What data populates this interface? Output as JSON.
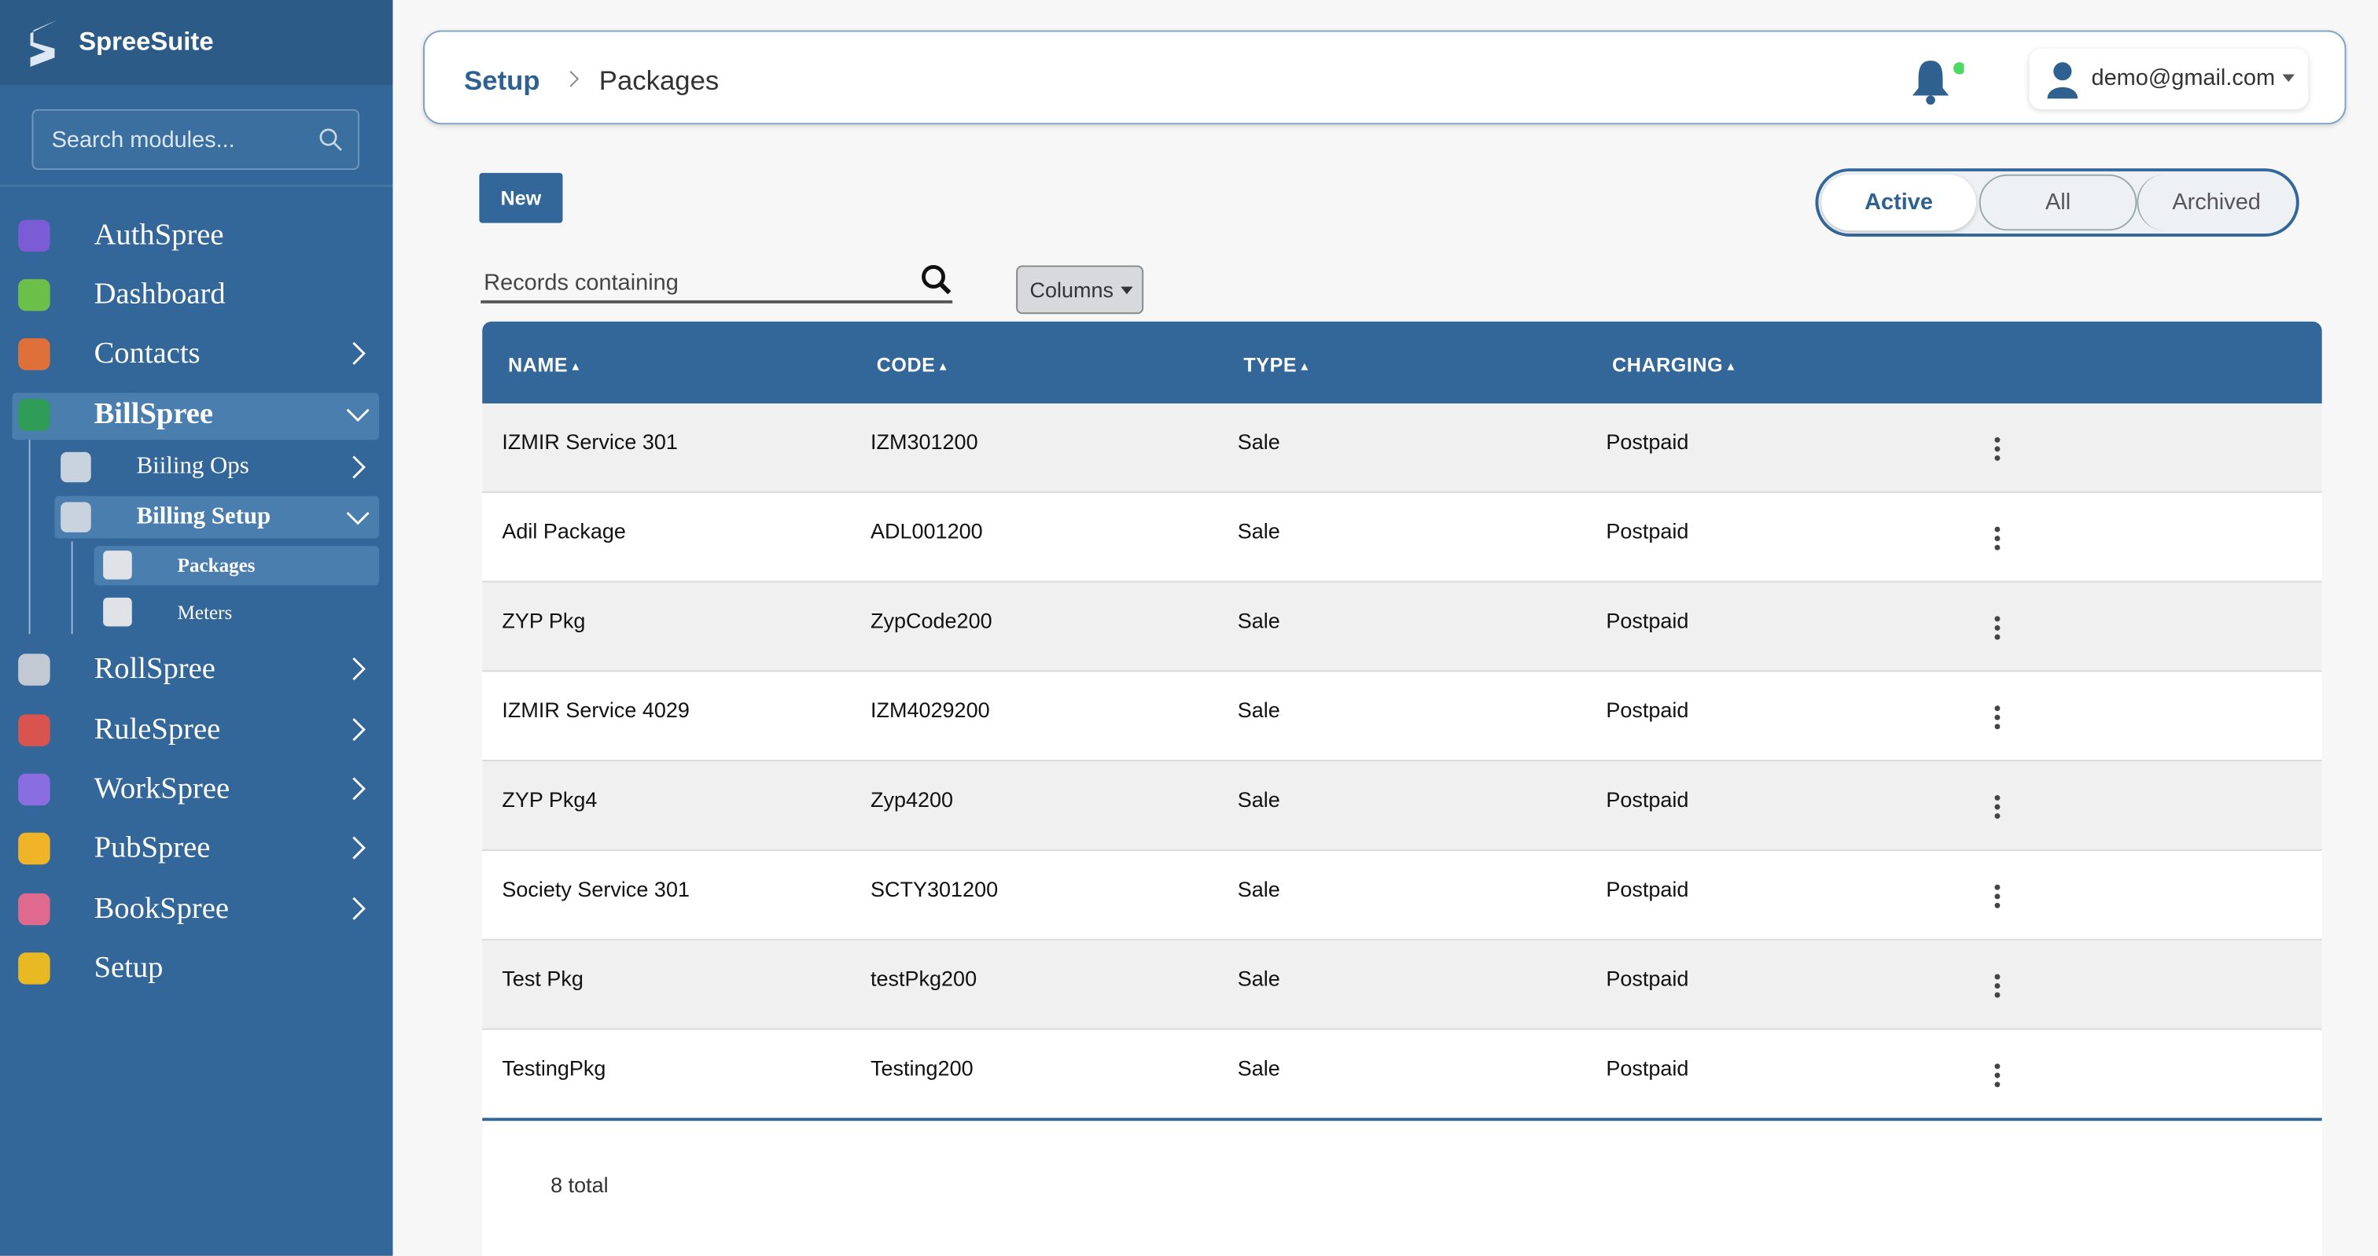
{
  "brand": "SpreeSuite",
  "sidebar_search": "Search modules...",
  "nav": {
    "items": [
      "AuthSpree",
      "Dashboard",
      "Contacts",
      "BillSpree",
      "RollSpree",
      "RuleSpree",
      "WorkSpree",
      "PubSpree",
      "BookSpree",
      "Setup"
    ],
    "billspree_children": [
      "Biiling Ops",
      "Billing Setup"
    ],
    "billing_setup_children": [
      "Packages",
      "Meters"
    ]
  },
  "header": {
    "breadcrumb": [
      "Setup",
      "Packages"
    ],
    "user": "demo@gmail.com"
  },
  "toolbar": {
    "new_button": "New",
    "tabs": [
      "Active",
      "All",
      "Archived"
    ],
    "search_placeholder": "Records containing",
    "columns_button": "Columns"
  },
  "table": {
    "headers": [
      "NAME",
      "CODE",
      "TYPE",
      "CHARGING"
    ],
    "rows": [
      [
        "IZMIR Service 301",
        "IZM301200",
        "Sale",
        "Postpaid"
      ],
      [
        "Adil Package",
        "ADL001200",
        "Sale",
        "Postpaid"
      ],
      [
        "ZYP Pkg",
        "ZypCode200",
        "Sale",
        "Postpaid"
      ],
      [
        "IZMIR Service 4029",
        "IZM4029200",
        "Sale",
        "Postpaid"
      ],
      [
        "ZYP Pkg4",
        "Zyp4200",
        "Sale",
        "Postpaid"
      ],
      [
        "Society Service 301",
        "SCTY301200",
        "Sale",
        "Postpaid"
      ],
      [
        "Test Pkg",
        "testPkg200",
        "Sale",
        "Postpaid"
      ],
      [
        "TestingPkg",
        "Testing200",
        "Sale",
        "Postpaid"
      ]
    ],
    "footer": "8 total"
  }
}
